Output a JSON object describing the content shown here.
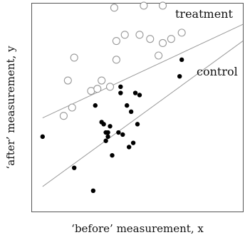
{
  "chart_data": {
    "type": "scatter",
    "xlabel": "‘before’ measurement, x",
    "ylabel": "‘after’ measurement, y",
    "xlim": [
      0,
      100
    ],
    "ylim": [
      0,
      100
    ],
    "grid": false,
    "ticks": false,
    "series": [
      {
        "name": "treatment",
        "marker": "open-circle",
        "color": "#999999",
        "points": [
          [
            39,
            98
          ],
          [
            53,
            99
          ],
          [
            62,
            99
          ],
          [
            40,
            82
          ],
          [
            44,
            85
          ],
          [
            51,
            85
          ],
          [
            56,
            83
          ],
          [
            62,
            81
          ],
          [
            66,
            83
          ],
          [
            71,
            86
          ],
          [
            60,
            75
          ],
          [
            40,
            73
          ],
          [
            20,
            74
          ],
          [
            17,
            63
          ],
          [
            33,
            63
          ],
          [
            28,
            58
          ],
          [
            31,
            59
          ],
          [
            37,
            60
          ],
          [
            15,
            46
          ],
          [
            19,
            50
          ]
        ],
        "fit": [
          [
            5,
            45
          ],
          [
            100,
            90
          ]
        ]
      },
      {
        "name": "control",
        "marker": "filled-circle",
        "color": "#000000",
        "points": [
          [
            71,
            73
          ],
          [
            70,
            65
          ],
          [
            42,
            60
          ],
          [
            30,
            51
          ],
          [
            45,
            51
          ],
          [
            42,
            57
          ],
          [
            47,
            48
          ],
          [
            51,
            56
          ],
          [
            49,
            57
          ],
          [
            33,
            43
          ],
          [
            34,
            42
          ],
          [
            35,
            38
          ],
          [
            36,
            38
          ],
          [
            37,
            41
          ],
          [
            41,
            38
          ],
          [
            43,
            37
          ],
          [
            48,
            33
          ],
          [
            46,
            31
          ],
          [
            35,
            34
          ],
          [
            36,
            36
          ],
          [
            50,
            42
          ],
          [
            38,
            27
          ],
          [
            20,
            21
          ],
          [
            5,
            36
          ],
          [
            29,
            10
          ]
        ],
        "fit": [
          [
            5,
            12
          ],
          [
            100,
            82
          ]
        ]
      }
    ]
  }
}
